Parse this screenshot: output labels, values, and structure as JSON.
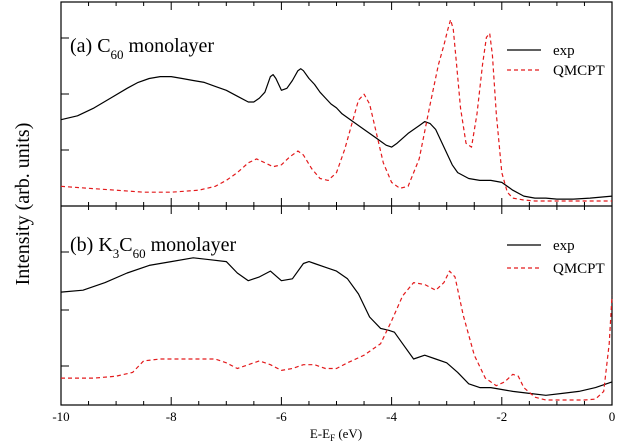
{
  "figure": {
    "ylabel": "Intensity (arb. units)",
    "xlabel_main": "E-E",
    "xlabel_sub": "F",
    "xlabel_unit": " (eV)"
  },
  "colors": {
    "exp": "#000000",
    "qmcpt": "#e31a1c",
    "axis": "#000000"
  },
  "chart_data": [
    {
      "type": "line",
      "label_prefix": "(a) C",
      "label_sub": "60",
      "label_suffix": " monolayer",
      "xlim": [
        -10,
        0
      ],
      "xticks": [
        -10,
        -8,
        -6,
        -4,
        -2,
        0
      ],
      "legend": [
        "exp",
        "QMCPT"
      ],
      "legend_position": "top-right",
      "series": [
        {
          "name": "exp",
          "style": "solid",
          "x": [
            -10.0,
            -9.7,
            -9.4,
            -9.1,
            -8.8,
            -8.6,
            -8.4,
            -8.2,
            -8.0,
            -7.8,
            -7.6,
            -7.4,
            -7.2,
            -7.0,
            -6.8,
            -6.6,
            -6.5,
            -6.4,
            -6.3,
            -6.2,
            -6.15,
            -6.1,
            -6.0,
            -5.9,
            -5.8,
            -5.7,
            -5.65,
            -5.6,
            -5.5,
            -5.4,
            -5.3,
            -5.2,
            -5.1,
            -5.0,
            -4.9,
            -4.7,
            -4.5,
            -4.3,
            -4.1,
            -4.0,
            -3.9,
            -3.7,
            -3.5,
            -3.4,
            -3.3,
            -3.2,
            -3.1,
            -3.0,
            -2.9,
            -2.8,
            -2.6,
            -2.4,
            -2.2,
            -2.0,
            -1.8,
            -1.6,
            -1.4,
            -1.2,
            -1.0,
            -0.7,
            -0.4,
            0.0
          ],
          "y": [
            0.42,
            0.44,
            0.48,
            0.53,
            0.58,
            0.61,
            0.63,
            0.64,
            0.64,
            0.63,
            0.62,
            0.61,
            0.59,
            0.57,
            0.54,
            0.51,
            0.51,
            0.53,
            0.56,
            0.64,
            0.65,
            0.63,
            0.57,
            0.58,
            0.62,
            0.67,
            0.68,
            0.67,
            0.63,
            0.6,
            0.56,
            0.53,
            0.5,
            0.48,
            0.45,
            0.41,
            0.37,
            0.33,
            0.29,
            0.28,
            0.3,
            0.35,
            0.39,
            0.41,
            0.4,
            0.37,
            0.31,
            0.25,
            0.19,
            0.15,
            0.12,
            0.11,
            0.11,
            0.1,
            0.06,
            0.03,
            0.02,
            0.02,
            0.015,
            0.015,
            0.02,
            0.03
          ]
        },
        {
          "name": "QMCPT",
          "style": "dashed",
          "x": [
            -10.0,
            -9.5,
            -9.0,
            -8.5,
            -8.0,
            -7.5,
            -7.2,
            -7.0,
            -6.8,
            -6.6,
            -6.45,
            -6.3,
            -6.15,
            -6.0,
            -5.85,
            -5.7,
            -5.6,
            -5.45,
            -5.3,
            -5.15,
            -5.0,
            -4.85,
            -4.7,
            -4.6,
            -4.5,
            -4.4,
            -4.3,
            -4.15,
            -4.0,
            -3.85,
            -3.7,
            -3.5,
            -3.3,
            -3.15,
            -3.05,
            -2.98,
            -2.93,
            -2.88,
            -2.82,
            -2.75,
            -2.65,
            -2.55,
            -2.45,
            -2.35,
            -2.28,
            -2.22,
            -2.17,
            -2.1,
            -2.0,
            -1.9,
            -1.8,
            -1.6,
            -1.4,
            -1.0,
            -0.5,
            0.0
          ],
          "y": [
            0.08,
            0.07,
            0.06,
            0.05,
            0.05,
            0.06,
            0.08,
            0.11,
            0.15,
            0.2,
            0.22,
            0.2,
            0.18,
            0.19,
            0.23,
            0.26,
            0.24,
            0.17,
            0.12,
            0.11,
            0.15,
            0.27,
            0.42,
            0.52,
            0.55,
            0.5,
            0.38,
            0.2,
            0.1,
            0.07,
            0.08,
            0.22,
            0.5,
            0.7,
            0.8,
            0.88,
            0.93,
            0.88,
            0.7,
            0.48,
            0.3,
            0.28,
            0.45,
            0.7,
            0.84,
            0.86,
            0.75,
            0.45,
            0.15,
            0.05,
            0.02,
            0.01,
            0.005,
            0.005,
            0.005,
            0.005
          ]
        }
      ]
    },
    {
      "type": "line",
      "label_prefix": "(b) K",
      "label_sub": "3",
      "label_mid": "C",
      "label_sub2": "60",
      "label_suffix": " monolayer",
      "xlim": [
        -10,
        0
      ],
      "xticks": [
        -10,
        -8,
        -6,
        -4,
        -2,
        0
      ],
      "legend": [
        "exp",
        "QMCPT"
      ],
      "legend_position": "top-right",
      "series": [
        {
          "name": "exp",
          "style": "solid",
          "x": [
            -10.0,
            -9.6,
            -9.2,
            -8.8,
            -8.4,
            -8.0,
            -7.6,
            -7.3,
            -7.0,
            -6.8,
            -6.6,
            -6.4,
            -6.2,
            -6.0,
            -5.8,
            -5.6,
            -5.5,
            -5.4,
            -5.2,
            -5.0,
            -4.8,
            -4.6,
            -4.4,
            -4.2,
            -4.05,
            -3.95,
            -3.8,
            -3.6,
            -3.4,
            -3.2,
            -3.0,
            -2.8,
            -2.6,
            -2.4,
            -2.2,
            -2.0,
            -1.8,
            -1.5,
            -1.2,
            -0.9,
            -0.6,
            -0.3,
            -0.1,
            0.0
          ],
          "y": [
            0.57,
            0.58,
            0.62,
            0.67,
            0.71,
            0.73,
            0.75,
            0.74,
            0.73,
            0.67,
            0.63,
            0.65,
            0.68,
            0.63,
            0.64,
            0.72,
            0.73,
            0.72,
            0.7,
            0.68,
            0.64,
            0.56,
            0.44,
            0.38,
            0.37,
            0.36,
            0.3,
            0.22,
            0.24,
            0.22,
            0.2,
            0.15,
            0.09,
            0.07,
            0.07,
            0.06,
            0.05,
            0.04,
            0.03,
            0.04,
            0.05,
            0.07,
            0.09,
            0.1
          ]
        },
        {
          "name": "QMCPT",
          "style": "dashed",
          "x": [
            -10.0,
            -9.4,
            -9.0,
            -8.7,
            -8.5,
            -8.2,
            -8.0,
            -7.6,
            -7.2,
            -7.0,
            -6.8,
            -6.6,
            -6.4,
            -6.2,
            -6.0,
            -5.8,
            -5.6,
            -5.4,
            -5.2,
            -5.0,
            -4.8,
            -4.5,
            -4.2,
            -4.0,
            -3.8,
            -3.6,
            -3.4,
            -3.2,
            -3.05,
            -2.95,
            -2.85,
            -2.7,
            -2.5,
            -2.3,
            -2.1,
            -1.95,
            -1.8,
            -1.7,
            -1.6,
            -1.4,
            -1.2,
            -1.0,
            -0.8,
            -0.5,
            -0.3,
            -0.15,
            -0.05,
            0.0
          ],
          "y": [
            0.12,
            0.12,
            0.13,
            0.15,
            0.21,
            0.22,
            0.22,
            0.22,
            0.22,
            0.2,
            0.17,
            0.19,
            0.21,
            0.19,
            0.16,
            0.17,
            0.19,
            0.19,
            0.17,
            0.17,
            0.2,
            0.24,
            0.3,
            0.42,
            0.55,
            0.62,
            0.61,
            0.58,
            0.62,
            0.68,
            0.65,
            0.45,
            0.24,
            0.12,
            0.08,
            0.1,
            0.14,
            0.13,
            0.07,
            0.02,
            0.005,
            0.005,
            0.005,
            0.005,
            0.01,
            0.05,
            0.3,
            0.55
          ]
        }
      ]
    }
  ]
}
